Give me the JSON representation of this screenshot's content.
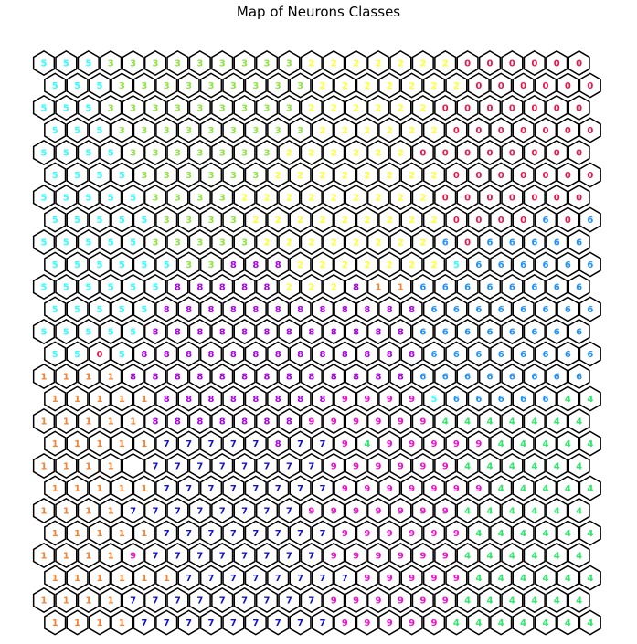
{
  "chart_data": {
    "type": "heatmap",
    "title": "Map of Neurons Classes",
    "xlabel": "",
    "ylabel": "",
    "grid": false,
    "layout": "hexagonal",
    "rows": 26,
    "cols": 25,
    "class_colors": {
      "0": "#e6194b",
      "1": "#f58231",
      "2": "#ffff33",
      "3": "#8ee53f",
      "4": "#2ee86a",
      "5": "#33ffff",
      "6": "#1e90ff",
      "7": "#1111cc",
      "8": "#aa00ee",
      "9": "#ee11cc"
    },
    "grid_labels": [
      [
        "5",
        "5",
        "5",
        "3",
        "3",
        "3",
        "3",
        "3",
        "3",
        "3",
        "3",
        "3",
        "2",
        "2",
        "2",
        "2",
        "2",
        "2",
        "2",
        "0",
        "0",
        "0",
        "0",
        "0",
        "0"
      ],
      [
        "5",
        "5",
        "5",
        "3",
        "3",
        "3",
        "3",
        "3",
        "3",
        "3",
        "3",
        "3",
        "2",
        "2",
        "2",
        "2",
        "2",
        "2",
        "2",
        "0",
        "0",
        "0",
        "0",
        "0",
        "0"
      ],
      [
        "5",
        "5",
        "5",
        "3",
        "3",
        "3",
        "3",
        "3",
        "3",
        "3",
        "3",
        "3",
        "2",
        "2",
        "2",
        "2",
        "2",
        "2",
        "0",
        "0",
        "0",
        "0",
        "0",
        "0",
        "0"
      ],
      [
        "5",
        "5",
        "5",
        "3",
        "3",
        "3",
        "3",
        "3",
        "3",
        "3",
        "3",
        "3",
        "2",
        "2",
        "2",
        "2",
        "2",
        "2",
        "0",
        "0",
        "0",
        "0",
        "0",
        "0",
        "0"
      ],
      [
        "5",
        "5",
        "5",
        "5",
        "3",
        "3",
        "3",
        "3",
        "3",
        "3",
        "3",
        "2",
        "2",
        "2",
        "2",
        "2",
        "2",
        "0",
        "0",
        "0",
        "0",
        "0",
        "0",
        "0",
        "0"
      ],
      [
        "5",
        "5",
        "5",
        "5",
        "3",
        "3",
        "3",
        "3",
        "3",
        "3",
        "2",
        "2",
        "2",
        "2",
        "2",
        "2",
        "2",
        "2",
        "0",
        "0",
        "0",
        "0",
        "0",
        "0",
        "0"
      ],
      [
        "5",
        "5",
        "5",
        "5",
        "5",
        "3",
        "3",
        "3",
        "3",
        "2",
        "2",
        "2",
        "2",
        "2",
        "2",
        "2",
        "2",
        "2",
        "0",
        "0",
        "0",
        "0",
        "0",
        "0",
        "0"
      ],
      [
        "5",
        "5",
        "5",
        "5",
        "5",
        "3",
        "3",
        "3",
        "3",
        "2",
        "2",
        "2",
        "2",
        "2",
        "2",
        "2",
        "2",
        "2",
        "0",
        "0",
        "0",
        "0",
        "6",
        "0",
        "6"
      ],
      [
        "5",
        "5",
        "5",
        "5",
        "5",
        "3",
        "3",
        "3",
        "3",
        "3",
        "2",
        "2",
        "2",
        "2",
        "2",
        "2",
        "2",
        "2",
        "6",
        "0",
        "6",
        "6",
        "6",
        "6",
        "6"
      ],
      [
        "5",
        "5",
        "5",
        "5",
        "5",
        "5",
        "3",
        "3",
        "8",
        "8",
        "8",
        "2",
        "2",
        "2",
        "2",
        "2",
        "2",
        "2",
        "5",
        "6",
        "6",
        "6",
        "6",
        "6",
        "6"
      ],
      [
        "5",
        "5",
        "5",
        "5",
        "5",
        "5",
        "8",
        "8",
        "8",
        "8",
        "8",
        "2",
        "2",
        "2",
        "8",
        "1",
        "1",
        "6",
        "6",
        "6",
        "6",
        "6",
        "6",
        "6",
        "6"
      ],
      [
        "5",
        "5",
        "5",
        "5",
        "5",
        "8",
        "8",
        "8",
        "8",
        "8",
        "8",
        "8",
        "8",
        "8",
        "8",
        "8",
        "8",
        "6",
        "6",
        "6",
        "6",
        "6",
        "6",
        "6",
        "6"
      ],
      [
        "5",
        "5",
        "5",
        "5",
        "5",
        "8",
        "8",
        "8",
        "8",
        "8",
        "8",
        "8",
        "8",
        "8",
        "8",
        "8",
        "8",
        "6",
        "6",
        "6",
        "6",
        "6",
        "6",
        "6",
        "6"
      ],
      [
        "5",
        "5",
        "0",
        "5",
        "8",
        "8",
        "8",
        "8",
        "8",
        "8",
        "8",
        "8",
        "8",
        "8",
        "8",
        "8",
        "8",
        "6",
        "6",
        "6",
        "6",
        "6",
        "6",
        "6",
        "6"
      ],
      [
        "1",
        "1",
        "1",
        "1",
        "8",
        "8",
        "8",
        "8",
        "8",
        "8",
        "8",
        "8",
        "8",
        "8",
        "8",
        "8",
        "8",
        "6",
        "6",
        "6",
        "6",
        "6",
        "6",
        "6",
        "6"
      ],
      [
        "1",
        "1",
        "1",
        "1",
        "1",
        "8",
        "8",
        "8",
        "8",
        "8",
        "8",
        "8",
        "8",
        "9",
        "9",
        "9",
        "9",
        "5",
        "6",
        "6",
        "6",
        "6",
        "6",
        "4",
        "4"
      ],
      [
        "1",
        "1",
        "1",
        "1",
        "1",
        "8",
        "8",
        "8",
        "8",
        "8",
        "8",
        "8",
        "9",
        "9",
        "9",
        "9",
        "9",
        "9",
        "4",
        "4",
        "4",
        "4",
        "4",
        "4",
        "4"
      ],
      [
        "1",
        "1",
        "1",
        "1",
        "1",
        "7",
        "7",
        "7",
        "7",
        "7",
        "8",
        "7",
        "7",
        "9",
        "4",
        "9",
        "9",
        "9",
        "9",
        "9",
        "4",
        "4",
        "4",
        "4",
        "4"
      ],
      [
        "1",
        "1",
        "1",
        "1",
        "",
        "7",
        "7",
        "7",
        "7",
        "7",
        "7",
        "7",
        "7",
        "9",
        "9",
        "9",
        "9",
        "9",
        "9",
        "4",
        "4",
        "4",
        "4",
        "4",
        "4"
      ],
      [
        "1",
        "1",
        "1",
        "1",
        "1",
        "7",
        "7",
        "7",
        "7",
        "7",
        "7",
        "7",
        "7",
        "9",
        "9",
        "9",
        "9",
        "9",
        "9",
        "9",
        "4",
        "4",
        "4",
        "4",
        "4"
      ],
      [
        "1",
        "1",
        "1",
        "1",
        "7",
        "7",
        "7",
        "7",
        "7",
        "7",
        "7",
        "7",
        "9",
        "9",
        "9",
        "9",
        "9",
        "9",
        "9",
        "4",
        "4",
        "4",
        "4",
        "4",
        "4"
      ],
      [
        "1",
        "1",
        "1",
        "1",
        "1",
        "7",
        "7",
        "7",
        "7",
        "7",
        "7",
        "7",
        "7",
        "9",
        "9",
        "9",
        "9",
        "9",
        "9",
        "4",
        "4",
        "4",
        "4",
        "4",
        "4"
      ],
      [
        "1",
        "1",
        "1",
        "1",
        "9",
        "7",
        "7",
        "7",
        "7",
        "7",
        "7",
        "7",
        "7",
        "9",
        "9",
        "9",
        "9",
        "9",
        "9",
        "4",
        "4",
        "4",
        "4",
        "4",
        "4"
      ],
      [
        "1",
        "1",
        "1",
        "1",
        "1",
        "1",
        "7",
        "7",
        "7",
        "7",
        "7",
        "7",
        "7",
        "7",
        "9",
        "9",
        "9",
        "9",
        "9",
        "4",
        "4",
        "4",
        "4",
        "4",
        "4"
      ],
      [
        "1",
        "1",
        "1",
        "1",
        "7",
        "7",
        "7",
        "7",
        "7",
        "7",
        "7",
        "7",
        "7",
        "9",
        "9",
        "9",
        "9",
        "9",
        "9",
        "4",
        "4",
        "4",
        "4",
        "4",
        "4"
      ],
      [
        "1",
        "1",
        "1",
        "1",
        "7",
        "7",
        "7",
        "7",
        "7",
        "7",
        "7",
        "7",
        "7",
        "9",
        "9",
        "9",
        "9",
        "9",
        "4",
        "4",
        "4",
        "4",
        "4",
        "4",
        "4"
      ]
    ]
  }
}
